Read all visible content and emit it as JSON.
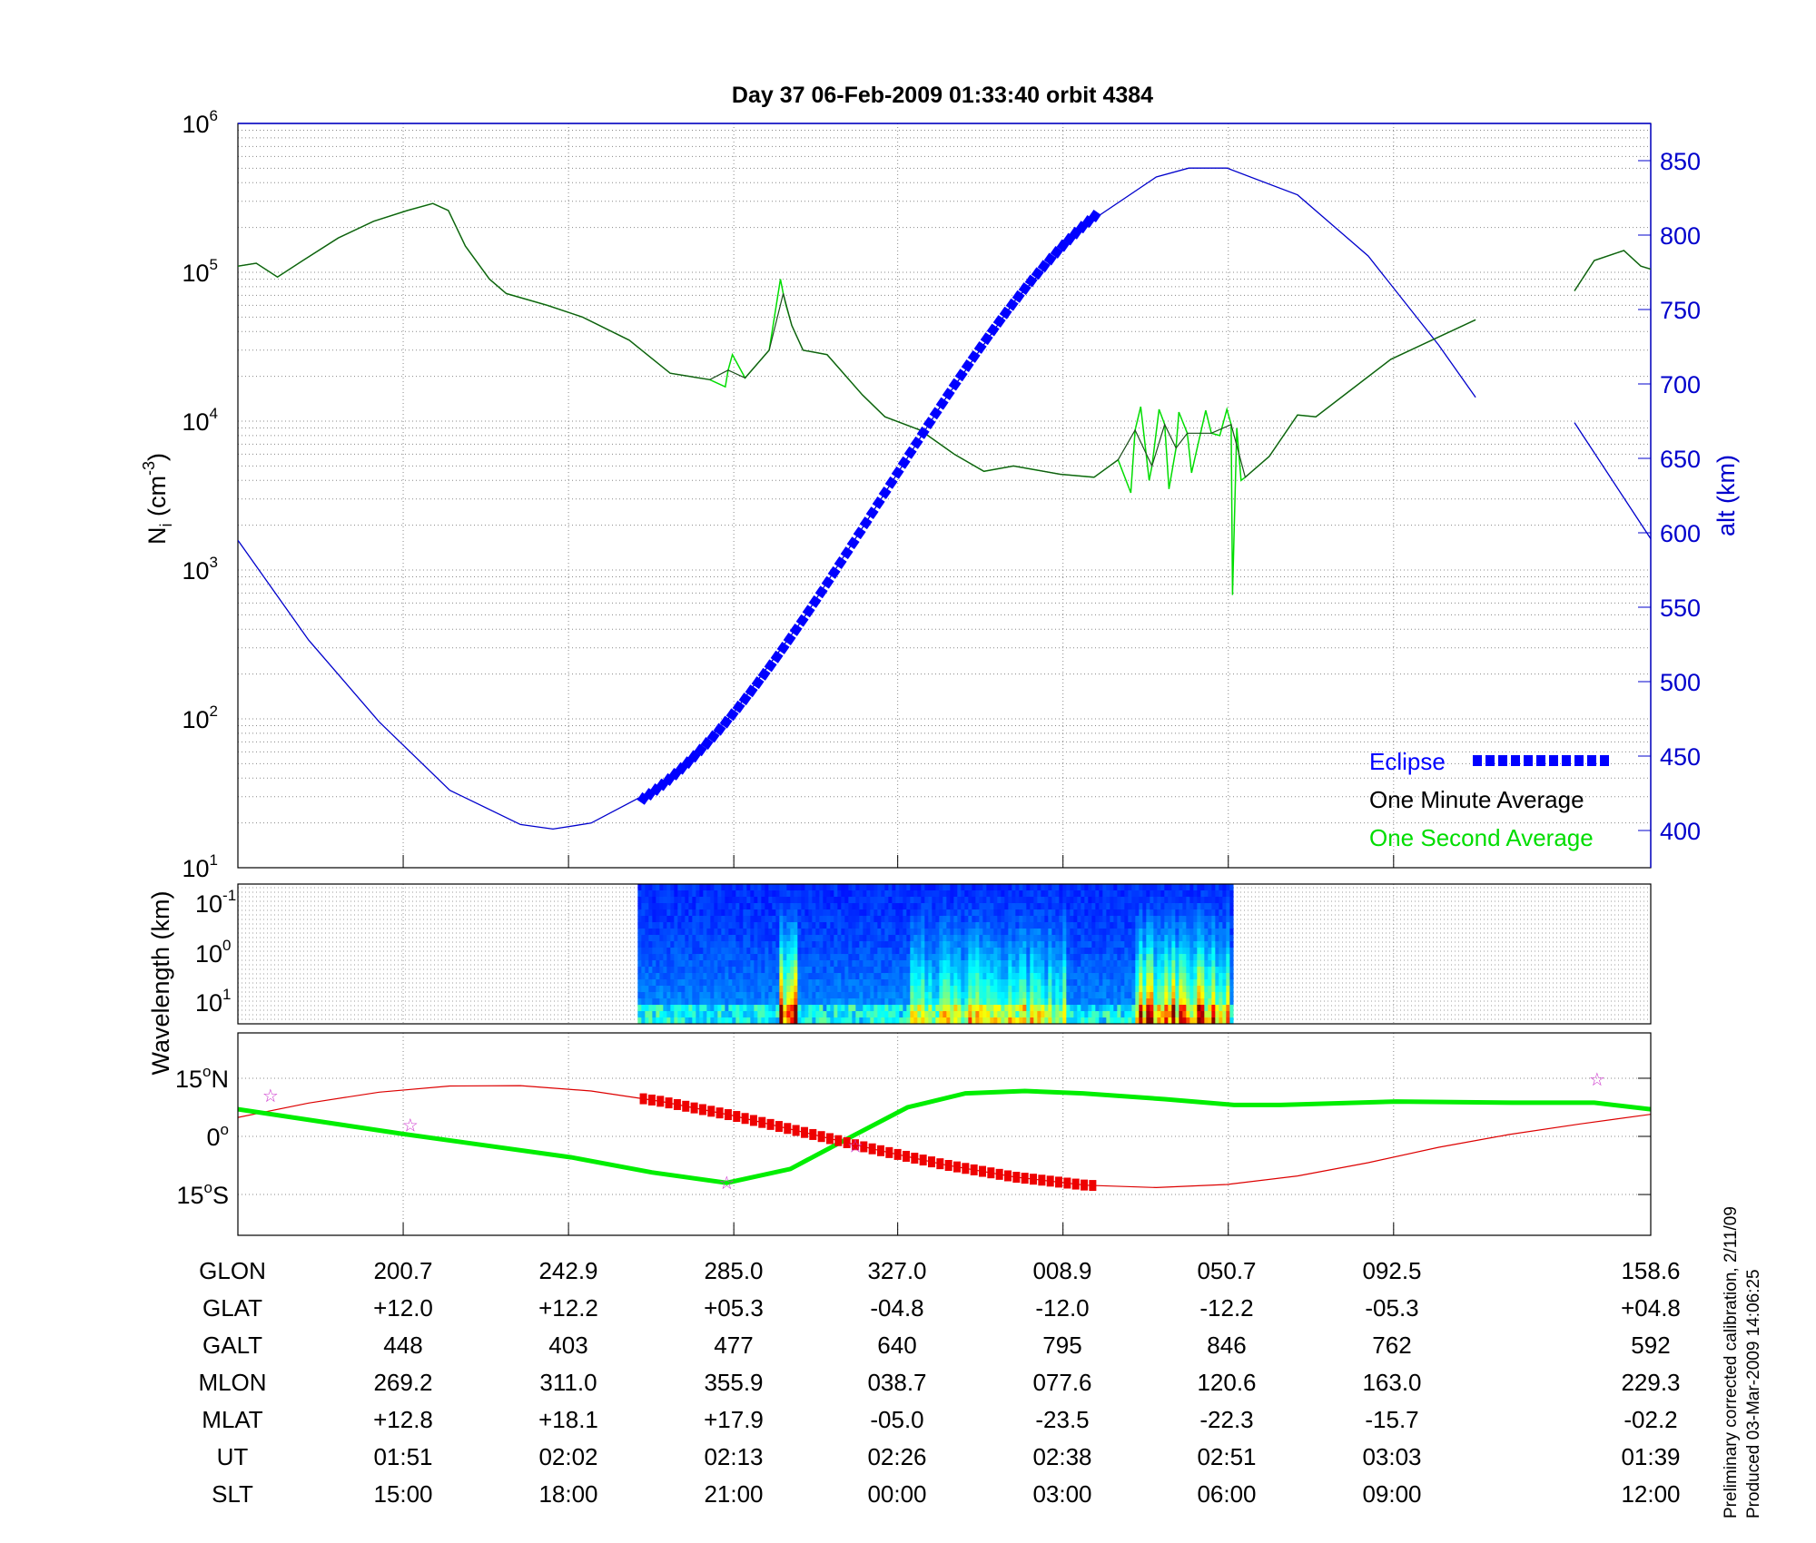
{
  "title": "Day 37  06-Feb-2009 01:33:40   orbit 4384",
  "footer": {
    "line1": "Preliminary corrected calibration, 2/11/09",
    "line2": "Produced 03-Mar-2009 14:06:25"
  },
  "colors": {
    "minute": "#000000",
    "second": "#00dd00",
    "alt": "#0000cc",
    "eclipse": "#0000ff",
    "orbit": "#dd0000",
    "dip_equator": "#00ee00",
    "star": "#cc33cc"
  },
  "chart_data": [
    {
      "type": "line",
      "name": "density-altitude",
      "ylabel": "N_i (cm^-3)",
      "ylabel_main": "N",
      "ylabel_sub": "i",
      "ylabel_unit": " (cm",
      "ylabel_exp": "-3",
      "ylabel_close": ")",
      "y2label": "alt (km)",
      "yscale": "log",
      "ylim": [
        10,
        1000000
      ],
      "yticks": [
        {
          "base": "10",
          "exp": "1",
          "v": 10
        },
        {
          "base": "10",
          "exp": "2",
          "v": 100
        },
        {
          "base": "10",
          "exp": "3",
          "v": 1000
        },
        {
          "base": "10",
          "exp": "4",
          "v": 10000
        },
        {
          "base": "10",
          "exp": "5",
          "v": 100000
        },
        {
          "base": "10",
          "exp": "6",
          "v": 1000000
        }
      ],
      "y2lim": [
        378,
        875
      ],
      "y2ticks": [
        "400",
        "450",
        "500",
        "550",
        "600",
        "650",
        "700",
        "750",
        "800",
        "850"
      ],
      "xlim": [
        0,
        100
      ],
      "xticks": [
        11.7,
        23.4,
        35.1,
        46.7,
        58.4,
        70.1,
        81.8
      ],
      "legend": {
        "placement": "bottom-right",
        "eclipse": "Eclipse",
        "minute": "One Minute Average",
        "second": "One Second Average"
      },
      "series": [
        {
          "name": "One Minute Average",
          "x": [
            0,
            1.3,
            2.8,
            4.6,
            7.1,
            9.6,
            12.0,
            13.8,
            14.9,
            16.1,
            17.8,
            19.0,
            21.9,
            24.4,
            27.7,
            30.6,
            33.4,
            34.7,
            35.9,
            37.6,
            38.6,
            39.2,
            40.0,
            41.7,
            44.2,
            45.8,
            48.3,
            50.7,
            52.8,
            54.9,
            58.2,
            60.6,
            62.3,
            63.5,
            64.7,
            65.6,
            66.4,
            67.2,
            68.9,
            70.3,
            71.3,
            73.0,
            75.0,
            76.3,
            78.7,
            81.6,
            84.5,
            87.6,
            null,
            94.6,
            96.0,
            98.1,
            99.3,
            100
          ],
          "y": [
            110000,
            115000,
            93000,
            120000,
            170000,
            220000,
            260000,
            290000,
            260000,
            150000,
            90000,
            72000,
            60000,
            50000,
            35000,
            21000,
            19000,
            22000,
            19500,
            30000,
            72000,
            44000,
            30000,
            28000,
            15000,
            10700,
            8700,
            6000,
            4600,
            5000,
            4400,
            4200,
            5500,
            8700,
            5000,
            9500,
            6600,
            8300,
            8300,
            9500,
            4200,
            5800,
            11000,
            10700,
            16000,
            26000,
            35000,
            48000,
            null,
            75000,
            120000,
            140000,
            110000,
            105000
          ]
        },
        {
          "name": "One Second Average spikes",
          "x": [
            34.5,
            35.0,
            38.4,
            38.8,
            63.2,
            63.9,
            64.5,
            65.2,
            65.9,
            66.6,
            67.5,
            68.5,
            69.5,
            70.0,
            70.4,
            70.7,
            71.0
          ],
          "y": [
            17000,
            28000,
            90000,
            60000,
            3300,
            12500,
            4000,
            12000,
            3500,
            11500,
            4500,
            11800,
            8000,
            12000,
            680,
            9000,
            4000
          ]
        },
        {
          "name": "Altitude (km)",
          "axis": "y2",
          "x": [
            0,
            5,
            10,
            15,
            20,
            22.3,
            25,
            30,
            35,
            40,
            45,
            50,
            55,
            60,
            65,
            67.3,
            70,
            75,
            80,
            85,
            87.6,
            null,
            94.6,
            97.3,
            100
          ],
          "y": [
            595,
            528,
            473,
            427,
            404,
            401,
            405,
            430,
            478,
            542,
            615,
            689,
            756,
            807,
            839,
            845,
            845,
            827,
            786,
            726,
            691,
            null,
            674,
            635,
            596
          ]
        },
        {
          "name": "Eclipse",
          "axis": "y2",
          "x_start": 28.7,
          "x_end": 60.9
        }
      ]
    },
    {
      "type": "heatmap",
      "name": "spectrogram",
      "ylabel": "Wavelength (km)",
      "yticks": [
        {
          "base": "10",
          "exp": "-1"
        },
        {
          "base": "10",
          "exp": "0"
        },
        {
          "base": "10",
          "exp": "1"
        }
      ],
      "x_range": [
        28.3,
        70.4
      ],
      "bursts": [
        {
          "x": [
            38.3,
            39.4
          ],
          "level": 0.95
        },
        {
          "x": [
            47.5,
            58.5
          ],
          "level": 0.55
        },
        {
          "x": [
            63.5,
            70.2
          ],
          "level": 0.85
        }
      ]
    },
    {
      "type": "line",
      "name": "ground-track",
      "yticks": [
        {
          "deg": "15",
          "sym": "o",
          "hem": "N",
          "v": 15
        },
        {
          "deg": "0",
          "sym": "o",
          "hem": "",
          "v": 0
        },
        {
          "deg": "15",
          "sym": "o",
          "hem": "S",
          "v": -15
        }
      ],
      "ylim": [
        -25.5,
        26.7
      ],
      "series": [
        {
          "name": "Orbit",
          "x": [
            0,
            5,
            10,
            15,
            20,
            25,
            30,
            35,
            40,
            45,
            50,
            55,
            60,
            65,
            70,
            75,
            80,
            85,
            90,
            95,
            100
          ],
          "y": [
            4.9,
            8.6,
            11.4,
            13.0,
            13.1,
            11.7,
            9.0,
            5.4,
            1.1,
            -3.3,
            -7.3,
            -10.5,
            -12.6,
            -13.2,
            -12.4,
            -10.2,
            -6.8,
            -2.8,
            0.5,
            3.2,
            5.7
          ]
        },
        {
          "name": "Dip equator",
          "x": [
            0,
            11.7,
            23.6,
            29.3,
            34.6,
            39.1,
            43.3,
            47.4,
            51.5,
            55.7,
            59.8,
            65.6,
            70.5,
            73.8,
            82.0,
            90.2,
            96.0,
            100
          ],
          "y": [
            7,
            0.6,
            -5.4,
            -9.3,
            -12,
            -8.4,
            -0.3,
            7.5,
            11.1,
            11.7,
            11.1,
            9.6,
            8.1,
            8.1,
            9.0,
            8.7,
            8.7,
            7
          ]
        },
        {
          "name": "Eclipse",
          "x_start": 28.7,
          "x_end": 61.0
        },
        {
          "name": "Stars",
          "x": [
            2.3,
            12.2,
            96.2,
            34.6,
            43.7
          ],
          "y": [
            10.5,
            2.9,
            14.7,
            -12,
            -2.4
          ]
        }
      ]
    }
  ],
  "table": {
    "rows": [
      {
        "label": "GLON",
        "values": [
          "200.7",
          "242.9",
          "285.0",
          "327.0",
          "008.9",
          "050.7",
          "092.5",
          "158.6"
        ]
      },
      {
        "label": "GLAT",
        "values": [
          "+12.0",
          "+12.2",
          "+05.3",
          "-04.8",
          "-12.0",
          "-12.2",
          "-05.3",
          "+04.8"
        ]
      },
      {
        "label": "GALT",
        "values": [
          "448",
          "403",
          "477",
          "640",
          "795",
          "846",
          "762",
          "592"
        ]
      },
      {
        "label": "MLON",
        "values": [
          "269.2",
          "311.0",
          "355.9",
          "038.7",
          "077.6",
          "120.6",
          "163.0",
          "229.3"
        ]
      },
      {
        "label": "MLAT",
        "values": [
          "+12.8",
          "+18.1",
          "+17.9",
          "-05.0",
          "-23.5",
          "-22.3",
          "-15.7",
          "-02.2"
        ]
      },
      {
        "label": "UT",
        "values": [
          "01:51",
          "02:02",
          "02:13",
          "02:26",
          "02:38",
          "02:51",
          "03:03",
          "01:39"
        ]
      },
      {
        "label": "SLT",
        "values": [
          "15:00",
          "18:00",
          "21:00",
          "00:00",
          "03:00",
          "06:00",
          "09:00",
          "12:00"
        ]
      }
    ]
  }
}
